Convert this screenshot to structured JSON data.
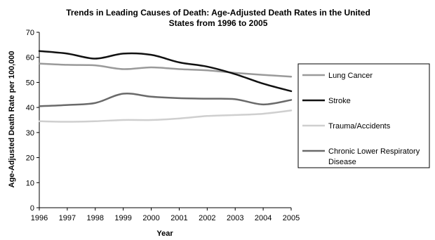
{
  "chart_data": {
    "type": "line",
    "title_lines": [
      "Trends in Leading Causes of Death: Age-Adjusted Death Rates in the United",
      "States from 1996 to 2005"
    ],
    "xlabel": "Year",
    "ylabel": "Age-Adjusted Death Rate per 100,000",
    "x": [
      "1996",
      "1997",
      "1998",
      "1999",
      "2000",
      "2001",
      "2002",
      "2003",
      "2004",
      "2005"
    ],
    "ylim": [
      0,
      70
    ],
    "yticks": [
      "0",
      "10",
      "20",
      "30",
      "40",
      "50",
      "60",
      "70"
    ],
    "grid": false,
    "legend_position": "right",
    "series": [
      {
        "name": "Lung Cancer",
        "color": "#9a9a9a",
        "values": [
          57.5,
          57,
          56.8,
          55.3,
          56,
          55.3,
          54.8,
          53.8,
          53,
          52.3
        ]
      },
      {
        "name": "Stroke",
        "color": "#111111",
        "values": [
          62.5,
          61.5,
          59.5,
          61.5,
          61,
          58,
          56.3,
          53.3,
          49.5,
          46.5
        ]
      },
      {
        "name": "Trauma/Accidents",
        "color": "#cfcfcf",
        "values": [
          34.5,
          34.3,
          34.5,
          35,
          35,
          35.6,
          36.6,
          37,
          37.5,
          38.8
        ]
      },
      {
        "name": "Chronic Lower Respiratory Disease",
        "legend_lines": [
          "Chronic Lower Respiratory",
          "Disease"
        ],
        "color": "#6a6a6a",
        "values": [
          40.5,
          41,
          41.8,
          45.5,
          44.3,
          43.7,
          43.5,
          43.3,
          41.2,
          43
        ]
      }
    ]
  }
}
